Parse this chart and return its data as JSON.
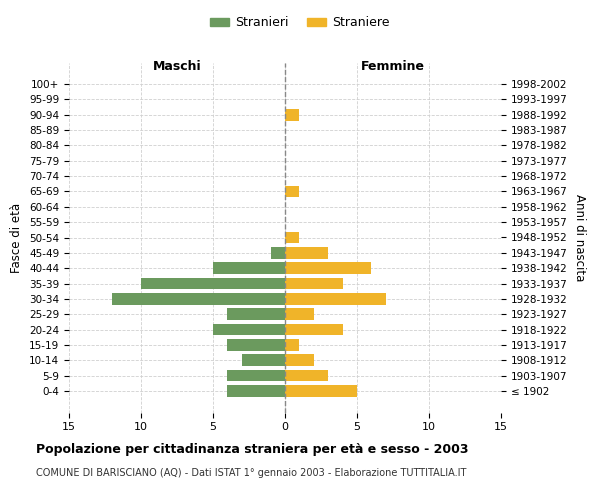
{
  "age_groups": [
    "100+",
    "95-99",
    "90-94",
    "85-89",
    "80-84",
    "75-79",
    "70-74",
    "65-69",
    "60-64",
    "55-59",
    "50-54",
    "45-49",
    "40-44",
    "35-39",
    "30-34",
    "25-29",
    "20-24",
    "15-19",
    "10-14",
    "5-9",
    "0-4"
  ],
  "birth_years": [
    "≤ 1902",
    "1903-1907",
    "1908-1912",
    "1913-1917",
    "1918-1922",
    "1923-1927",
    "1928-1932",
    "1933-1937",
    "1938-1942",
    "1943-1947",
    "1948-1952",
    "1953-1957",
    "1958-1962",
    "1963-1967",
    "1968-1972",
    "1973-1977",
    "1978-1982",
    "1983-1987",
    "1988-1992",
    "1993-1997",
    "1998-2002"
  ],
  "maschi": [
    0,
    0,
    0,
    0,
    0,
    0,
    0,
    0,
    0,
    0,
    0,
    1,
    5,
    10,
    12,
    4,
    5,
    4,
    3,
    4,
    4
  ],
  "femmine": [
    0,
    0,
    1,
    0,
    0,
    0,
    0,
    1,
    0,
    0,
    1,
    3,
    6,
    4,
    7,
    2,
    4,
    1,
    2,
    3,
    5
  ],
  "color_maschi": "#6b9a5e",
  "color_femmine": "#f0b429",
  "title": "Popolazione per cittadinanza straniera per età e sesso - 2003",
  "subtitle": "COMUNE DI BARISCIANO (AQ) - Dati ISTAT 1° gennaio 2003 - Elaborazione TUTTITALIA.IT",
  "ylabel_left": "Fasce di età",
  "ylabel_right": "Anni di nascita",
  "xlabel_left": "Maschi",
  "xlabel_right": "Femmine",
  "legend_maschi": "Stranieri",
  "legend_femmine": "Straniere",
  "xlim": 15,
  "background_color": "#ffffff",
  "grid_color": "#d0d0d0"
}
